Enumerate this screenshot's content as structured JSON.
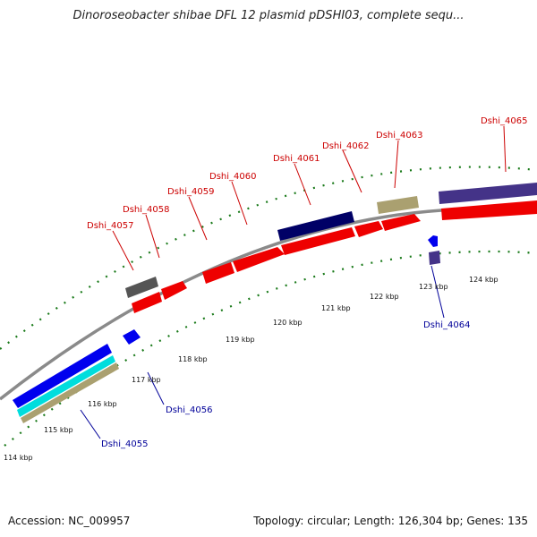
{
  "title": "Dinoroseobacter shibae DFL 12 plasmid pDSHI03, complete sequ...",
  "footer": {
    "accession": "Accession: NC_009957",
    "summary": "Topology: circular; Length: 126,304 bp; Genes: 135"
  },
  "colors": {
    "backbone": "#8a8a8a",
    "tick": "#1a7a1a",
    "plus_label": "#cc0000",
    "minus_label": "#000099",
    "cds_red": "#ee0000",
    "cds_grey": "#555555",
    "cds_navy": "#000066",
    "cds_purple": "#443388",
    "cds_khaki": "#aaa070",
    "cds_blue": "#0000ee",
    "cds_cyan": "#00dddd"
  },
  "ticks": [
    "114 kbp",
    "115 kbp",
    "116 kbp",
    "117 kbp",
    "118 kbp",
    "119 kbp",
    "120 kbp",
    "121 kbp",
    "122 kbp",
    "123 kbp",
    "124 kbp"
  ],
  "plus_genes": [
    "Dshi_4057",
    "Dshi_4058",
    "Dshi_4059",
    "Dshi_4060",
    "Dshi_4061",
    "Dshi_4062",
    "Dshi_4063",
    "Dshi_4065"
  ],
  "minus_genes": [
    "Dshi_4064",
    "Dshi_4056",
    "Dshi_4055"
  ]
}
